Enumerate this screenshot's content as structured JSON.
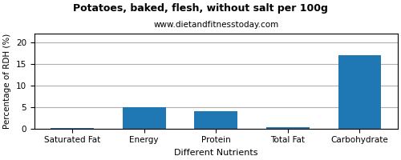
{
  "chart_data": {
    "type": "bar",
    "title": "Potatoes, baked, flesh, without salt per 100g",
    "subtitle": "www.dietandfitnesstoday.com",
    "xlabel": "Different Nutrients",
    "ylabel": "Percentage of RDH (%)",
    "categories": [
      "Saturated Fat",
      "Energy",
      "Protein",
      "Total Fat",
      "Carbohydrate"
    ],
    "values": [
      0.15,
      5.0,
      4.0,
      0.2,
      17.0
    ],
    "ylim": [
      0,
      22
    ],
    "yticks": [
      0,
      5,
      10,
      15,
      20
    ],
    "grid": true
  }
}
